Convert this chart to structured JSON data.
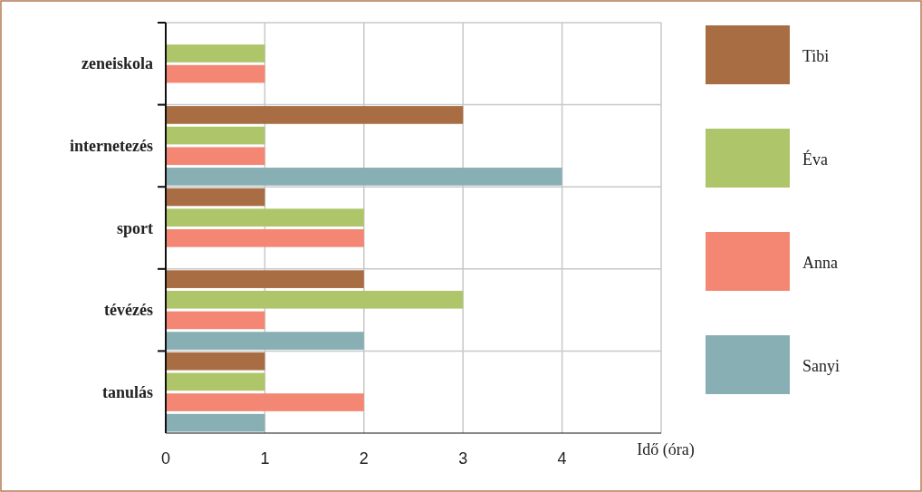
{
  "chart_data": {
    "type": "bar",
    "orientation": "horizontal",
    "categories": [
      "zeneiskola",
      "internetezés",
      "sport",
      "tévézés",
      "tanulás"
    ],
    "series": [
      {
        "name": "Tibi",
        "color": "#a86d42",
        "values": [
          null,
          3,
          1,
          2,
          1
        ]
      },
      {
        "name": "Éva",
        "color": "#afc56a",
        "values": [
          1,
          1,
          2,
          3,
          1
        ]
      },
      {
        "name": "Anna",
        "color": "#f48773",
        "values": [
          1,
          1,
          2,
          1,
          2
        ]
      },
      {
        "name": "Sanyi",
        "color": "#88afb3",
        "values": [
          null,
          4,
          null,
          2,
          1
        ]
      }
    ],
    "xlabel": "Idő (óra)",
    "xlim": [
      0,
      5
    ],
    "xticks": [
      0,
      1,
      2,
      3,
      4
    ],
    "grid": true,
    "legend": "right"
  }
}
